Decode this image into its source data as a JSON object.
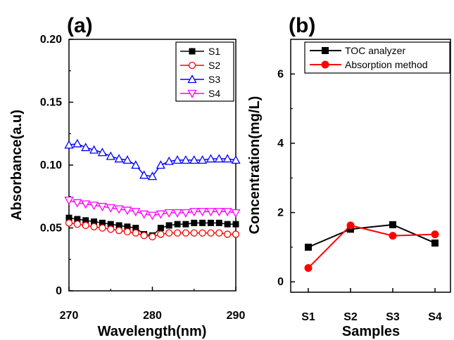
{
  "chart_data": [
    {
      "panel_label": "(a)",
      "type": "line",
      "xlabel": "Wavelength(nm)",
      "ylabel": "Absorbance(a.u)",
      "xlim": [
        270,
        290
      ],
      "ylim": [
        0,
        0.2
      ],
      "x_ticks": [
        270,
        280,
        290
      ],
      "y_ticks": [
        0,
        0.05,
        0.1,
        0.15,
        0.2
      ],
      "y_tick_labels": [
        "0",
        "0.05",
        "0.10",
        "0.15",
        "0.20"
      ],
      "legend_position": "top-right",
      "x": [
        270,
        271,
        272,
        273,
        274,
        275,
        276,
        277,
        278,
        279,
        280,
        281,
        282,
        283,
        284,
        285,
        286,
        287,
        288,
        289,
        290
      ],
      "series": [
        {
          "name": "S1",
          "color": "#000000",
          "marker": "square-filled",
          "values": [
            0.058,
            0.057,
            0.056,
            0.055,
            0.054,
            0.053,
            0.052,
            0.051,
            0.05,
            0.045,
            0.044,
            0.05,
            0.052,
            0.053,
            0.053,
            0.054,
            0.054,
            0.054,
            0.054,
            0.053,
            0.053
          ]
        },
        {
          "name": "S2",
          "color": "#ff0000",
          "marker": "circle-open",
          "values": [
            0.054,
            0.053,
            0.052,
            0.051,
            0.05,
            0.049,
            0.048,
            0.047,
            0.046,
            0.044,
            0.043,
            0.045,
            0.046,
            0.046,
            0.046,
            0.046,
            0.046,
            0.046,
            0.046,
            0.045,
            0.045
          ]
        },
        {
          "name": "S3",
          "color": "#0000ff",
          "marker": "triangle-up-open",
          "values": [
            0.116,
            0.117,
            0.114,
            0.112,
            0.11,
            0.107,
            0.105,
            0.104,
            0.1,
            0.092,
            0.091,
            0.1,
            0.103,
            0.104,
            0.104,
            0.104,
            0.104,
            0.105,
            0.105,
            0.105,
            0.104
          ]
        },
        {
          "name": "S4",
          "color": "#ff00ff",
          "marker": "triangle-down-open",
          "values": [
            0.072,
            0.07,
            0.069,
            0.068,
            0.067,
            0.066,
            0.065,
            0.064,
            0.063,
            0.061,
            0.06,
            0.061,
            0.062,
            0.062,
            0.062,
            0.063,
            0.063,
            0.063,
            0.063,
            0.063,
            0.062
          ]
        }
      ]
    },
    {
      "panel_label": "(b)",
      "type": "line",
      "xlabel": "Samples",
      "ylabel": "Concentration(mg/L)",
      "categories": [
        "S1",
        "S2",
        "S3",
        "S4"
      ],
      "ylim": [
        -0.3,
        7
      ],
      "y_ticks": [
        0,
        2,
        4,
        6
      ],
      "y_tick_labels": [
        "0",
        "2",
        "4",
        "6"
      ],
      "legend_position": "top-right",
      "series": [
        {
          "name": "TOC analyzer",
          "color": "#000000",
          "marker": "square-filled",
          "values": [
            1.0,
            1.52,
            1.65,
            1.12
          ]
        },
        {
          "name": "Absorption method",
          "color": "#ff0000",
          "marker": "circle-filled",
          "values": [
            0.4,
            1.63,
            1.33,
            1.37
          ]
        }
      ]
    }
  ]
}
